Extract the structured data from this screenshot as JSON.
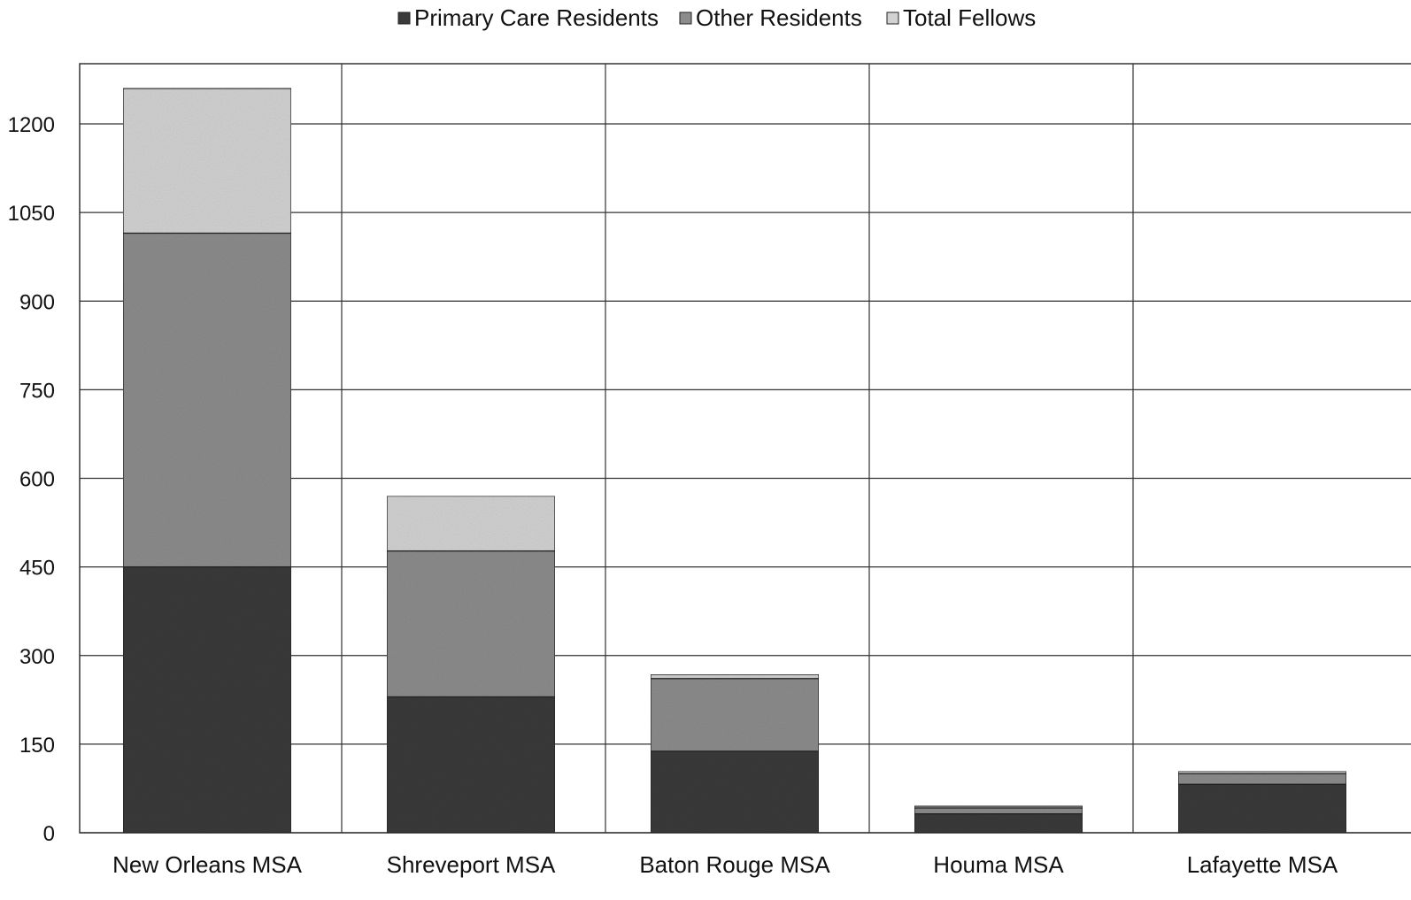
{
  "chart_data": {
    "type": "bar",
    "stacked": true,
    "categories": [
      "New Orleans MSA",
      "Shreveport MSA",
      "Baton Rouge MSA",
      "Houma MSA",
      "Lafayette MSA"
    ],
    "series": [
      {
        "name": "Primary Care Residents",
        "values": [
          450,
          230,
          138,
          32,
          82
        ],
        "color": "#3a3a3a"
      },
      {
        "name": "Other Residents",
        "values": [
          565,
          247,
          123,
          10,
          18
        ],
        "color": "#8c8c8c"
      },
      {
        "name": "Total Fellows",
        "values": [
          245,
          93,
          7,
          3,
          4
        ],
        "color": "#d2d2d2"
      }
    ],
    "y_ticks": [
      "0",
      "150",
      "300",
      "450",
      "600",
      "750",
      "900",
      "1050",
      "1200"
    ],
    "ylim": [
      0,
      1260
    ],
    "grid": true,
    "legend_position": "top-center"
  }
}
